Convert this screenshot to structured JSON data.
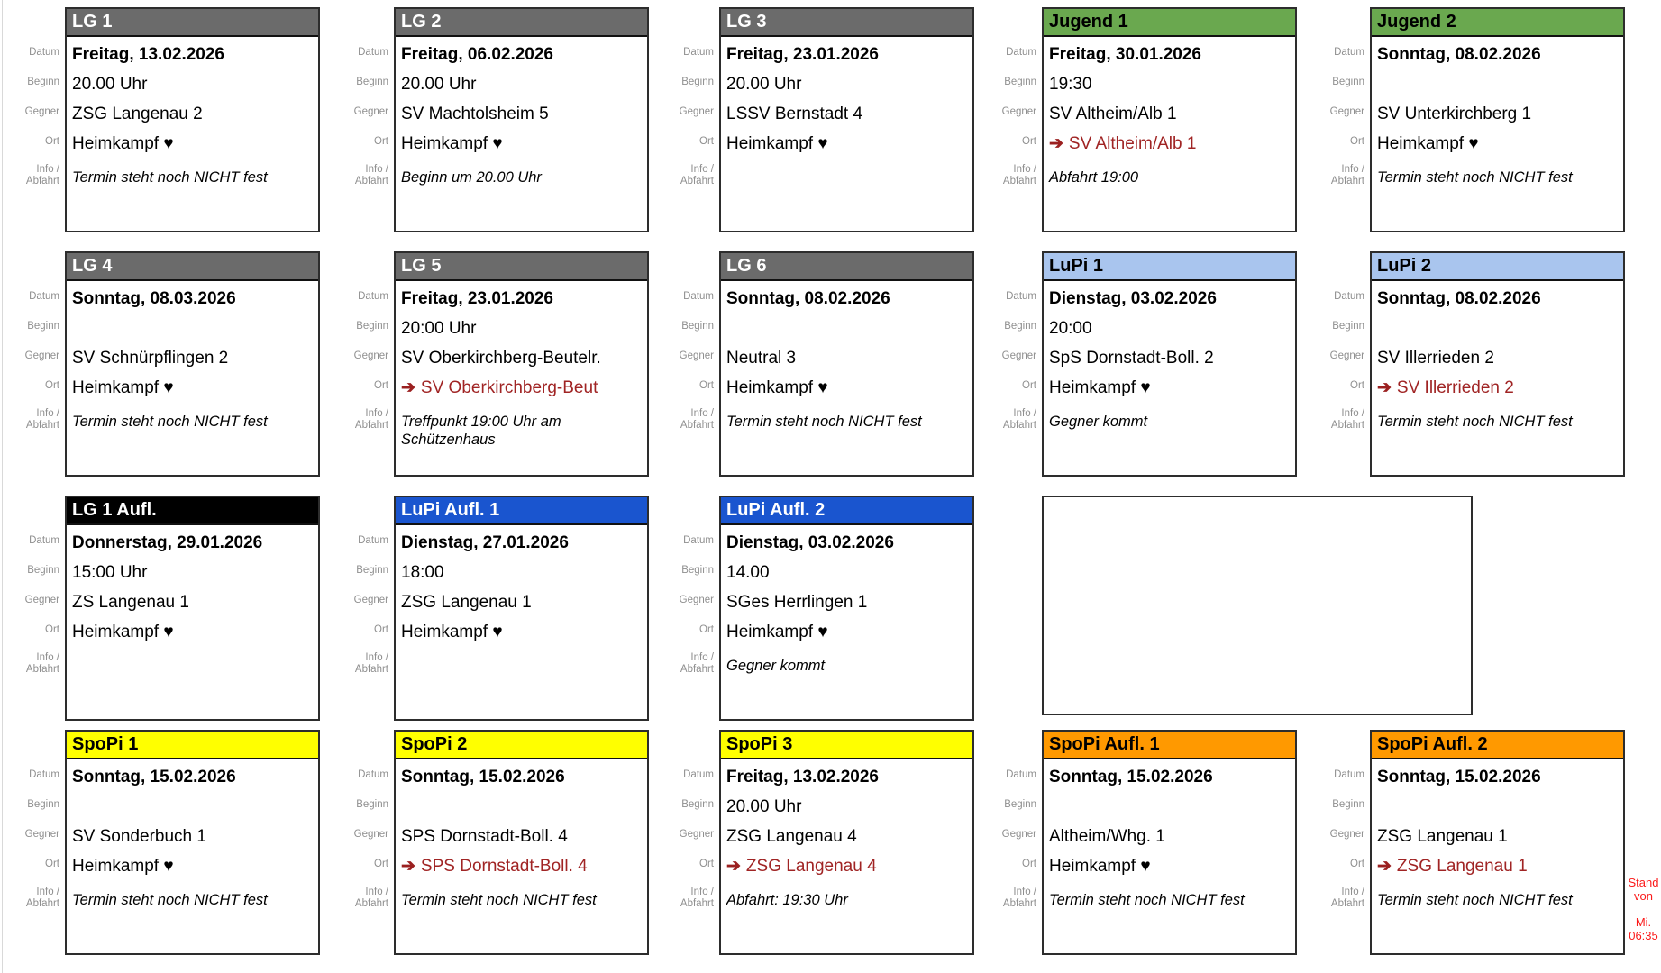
{
  "row_labels": {
    "datum": "Datum",
    "beginn": "Beginn",
    "gegner": "Gegner",
    "ort": "Ort",
    "info_line1": "Info /",
    "info_line2": "Abfahrt"
  },
  "icons": {
    "away_arrow": "➔"
  },
  "colors": {
    "away_text": "#a02424",
    "note_red": "#fb1a1a",
    "card_border": "#2d2d2d",
    "label_gray": "#8f8f8f",
    "header_styles": {
      "gray": {
        "bg": "#6b6b6b",
        "fg": "#ffffff"
      },
      "black": {
        "bg": "#000000",
        "fg": "#ffffff"
      },
      "green": {
        "bg": "#6aa84f",
        "fg": "#000000"
      },
      "lightblue": {
        "bg": "#a9c5ee",
        "fg": "#000000"
      },
      "blue": {
        "bg": "#1a55cf",
        "fg": "#ffffff"
      },
      "yellow": {
        "bg": "#ffff00",
        "fg": "#000000"
      },
      "orange": {
        "bg": "#ff9900",
        "fg": "#000000"
      }
    }
  },
  "stand_note": {
    "line1": "Stand",
    "line2": "von",
    "line3": "Mi.",
    "line4": "06:35"
  },
  "cards": [
    {
      "row": 0,
      "col": 0,
      "style": "gray",
      "title": "LG 1",
      "datum": "Freitag, 13.02.2026",
      "beginn": "20.00 Uhr",
      "gegner": "ZSG Langenau 2",
      "ort": "Heimkampf ♥",
      "away": false,
      "info": "Termin steht noch NICHT fest"
    },
    {
      "row": 0,
      "col": 1,
      "style": "gray",
      "title": "LG 2",
      "datum": "Freitag, 06.02.2026",
      "beginn": "20.00 Uhr",
      "gegner": "SV Machtolsheim 5",
      "ort": "Heimkampf ♥",
      "away": false,
      "info": "Beginn um 20.00 Uhr"
    },
    {
      "row": 0,
      "col": 2,
      "style": "gray",
      "title": "LG 3",
      "datum": "Freitag, 23.01.2026",
      "beginn": "20.00 Uhr",
      "gegner": "LSSV Bernstadt 4",
      "ort": "Heimkampf ♥",
      "away": false,
      "info": ""
    },
    {
      "row": 0,
      "col": 3,
      "style": "green",
      "title": "Jugend 1",
      "datum": "Freitag, 30.01.2026",
      "beginn": "19:30",
      "gegner": "SV Altheim/Alb 1",
      "ort": "SV Altheim/Alb 1",
      "away": true,
      "info": "Abfahrt 19:00"
    },
    {
      "row": 0,
      "col": 4,
      "style": "green",
      "title": "Jugend 2",
      "datum": "Sonntag, 08.02.2026",
      "beginn": "",
      "gegner": "SV Unterkirchberg 1",
      "ort": "Heimkampf ♥",
      "away": false,
      "info": "Termin steht noch NICHT fest"
    },
    {
      "row": 1,
      "col": 0,
      "style": "gray",
      "title": "LG 4",
      "datum": "Sonntag, 08.03.2026",
      "beginn": "",
      "gegner": "SV Schnürpflingen 2",
      "ort": "Heimkampf ♥",
      "away": false,
      "info": "Termin steht noch NICHT fest"
    },
    {
      "row": 1,
      "col": 1,
      "style": "gray",
      "title": "LG 5",
      "datum": "Freitag, 23.01.2026",
      "beginn": "20:00 Uhr",
      "gegner": "SV Oberkirchberg-Beutelr.",
      "ort": "SV Oberkirchberg-Beut",
      "away": true,
      "info": "Treffpunkt 19:00 Uhr am Schützenhaus"
    },
    {
      "row": 1,
      "col": 2,
      "style": "gray",
      "title": "LG 6",
      "datum": "Sonntag, 08.02.2026",
      "beginn": "",
      "gegner": "Neutral 3",
      "ort": "Heimkampf ♥",
      "away": false,
      "info": "Termin steht noch NICHT fest"
    },
    {
      "row": 1,
      "col": 3,
      "style": "lightblue",
      "title": "LuPi 1",
      "datum": "Dienstag, 03.02.2026",
      "beginn": "20:00",
      "gegner": "SpS Dornstadt-Boll. 2",
      "ort": "Heimkampf ♥",
      "away": false,
      "info": "Gegner kommt"
    },
    {
      "row": 1,
      "col": 4,
      "style": "lightblue",
      "title": "LuPi 2",
      "datum": "Sonntag, 08.02.2026",
      "beginn": "",
      "gegner": "SV Illerrieden 2",
      "ort": "SV Illerrieden 2",
      "away": true,
      "info": "Termin steht noch NICHT fest"
    },
    {
      "row": 2,
      "col": 0,
      "style": "black",
      "title": "LG 1 Aufl.",
      "datum": "Donnerstag, 29.01.2026",
      "beginn": "15:00 Uhr",
      "gegner": "ZS Langenau 1",
      "ort": "Heimkampf ♥",
      "away": false,
      "info": ""
    },
    {
      "row": 2,
      "col": 1,
      "style": "blue",
      "title": "LuPi Aufl. 1",
      "datum": "Dienstag, 27.01.2026",
      "beginn": "18:00",
      "gegner": "ZSG Langenau 1",
      "ort": "Heimkampf ♥",
      "away": false,
      "info": ""
    },
    {
      "row": 2,
      "col": 2,
      "style": "blue",
      "title": "LuPi Aufl. 2",
      "datum": "Dienstag, 03.02.2026",
      "beginn": "14.00",
      "gegner": "SGes Herrlingen 1",
      "ort": "Heimkampf ♥",
      "away": false,
      "info": "Gegner kommt"
    },
    {
      "row": 2,
      "col": 3,
      "empty": true
    },
    {
      "row": 3,
      "col": 0,
      "style": "yellow",
      "title": "SpoPi 1",
      "datum": "Sonntag, 15.02.2026",
      "beginn": "",
      "gegner": "SV Sonderbuch 1",
      "ort": "Heimkampf ♥",
      "away": false,
      "info": "Termin steht noch NICHT fest"
    },
    {
      "row": 3,
      "col": 1,
      "style": "yellow",
      "title": "SpoPi 2",
      "datum": "Sonntag, 15.02.2026",
      "beginn": "",
      "gegner": "SPS Dornstadt-Boll. 4",
      "ort": "SPS Dornstadt-Boll. 4",
      "away": true,
      "info": "Termin steht noch NICHT fest"
    },
    {
      "row": 3,
      "col": 2,
      "style": "yellow",
      "title": "SpoPi 3",
      "datum": "Freitag, 13.02.2026",
      "beginn": "20.00 Uhr",
      "gegner": "ZSG Langenau 4",
      "ort": "ZSG Langenau 4",
      "away": true,
      "info": "Abfahrt: 19:30 Uhr"
    },
    {
      "row": 3,
      "col": 3,
      "style": "orange",
      "title": "SpoPi Aufl. 1",
      "datum": "Sonntag, 15.02.2026",
      "beginn": "",
      "gegner": "Altheim/Whg. 1",
      "ort": "Heimkampf ♥",
      "away": false,
      "info": "Termin steht noch NICHT fest"
    },
    {
      "row": 3,
      "col": 4,
      "style": "orange",
      "title": "SpoPi Aufl. 2",
      "datum": "Sonntag, 15.02.2026",
      "beginn": "",
      "gegner": "ZSG Langenau 1",
      "ort": "ZSG Langenau 1",
      "away": true,
      "info": "Termin steht noch NICHT fest"
    }
  ]
}
